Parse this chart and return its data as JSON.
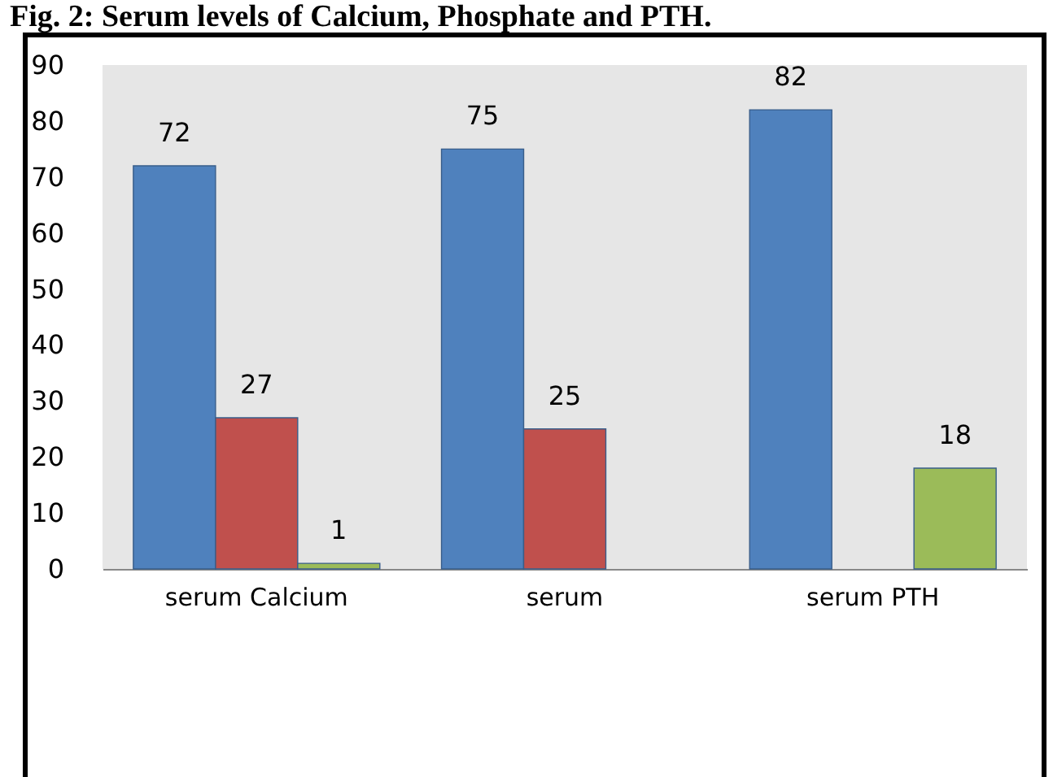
{
  "chart_data": {
    "type": "bar",
    "title": "Fig. 2: Serum levels of Calcium, Phosphate and PTH.",
    "categories": [
      "serum Calcium",
      "serum",
      "serum PTH"
    ],
    "series": [
      {
        "color": "#4f81bd",
        "values": [
          72,
          75,
          82
        ]
      },
      {
        "color": "#c0504d",
        "values": [
          27,
          25,
          null
        ]
      },
      {
        "color": "#9bbb59",
        "values": [
          1,
          null,
          18
        ]
      }
    ],
    "ylim": [
      0,
      90
    ],
    "yticks": [
      0,
      10,
      20,
      30,
      40,
      50,
      60,
      70,
      80,
      90
    ],
    "data_labels": true,
    "grid": false,
    "legend": false
  }
}
